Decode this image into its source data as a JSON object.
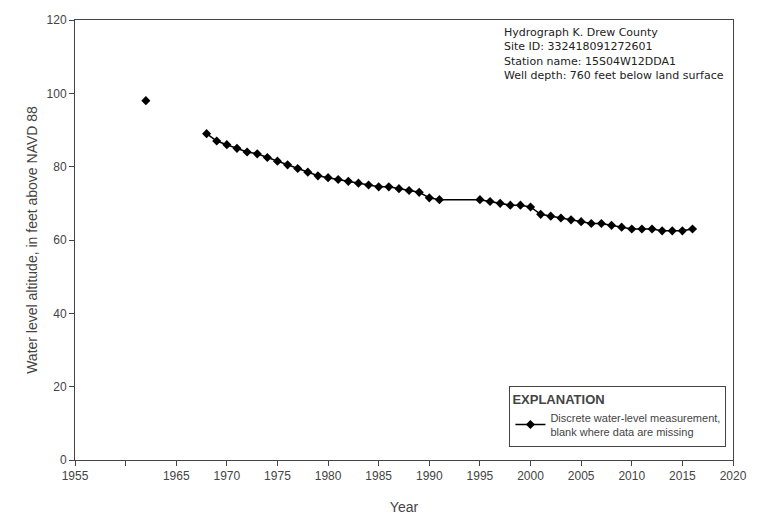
{
  "chart_data": {
    "type": "line",
    "xlabel": "Year",
    "ylabel": "Water level altitude, in feet above NAVD 88",
    "xlim": [
      1955,
      2020
    ],
    "ylim": [
      0,
      120
    ],
    "xticks": [
      1955,
      {
        "value": 1960,
        "label": null
      },
      1965,
      1970,
      1975,
      1980,
      1985,
      1990,
      1995,
      2000,
      2005,
      2010,
      2015,
      2020
    ],
    "yticks": [
      0,
      20,
      40,
      60,
      80,
      100,
      120
    ],
    "grid": false,
    "legend": "lower right",
    "legend_title": "EXPLANATION",
    "annotations": [
      "Hydrograph K. Drew County\nSite ID: 332418091272601\nStation name: 15S04W12DDA1\nWell depth: 760 feet below land surface"
    ],
    "series": [
      {
        "name": "Discrete water-level measurement,\nblank where data are missing",
        "color": "#000000",
        "marker": "diamond",
        "line_style": "none",
        "x": [
          1962
        ],
        "values": [
          98.0
        ]
      },
      {
        "name": "Discrete water-level measurement,\nblank where data are missing",
        "color": "#000000",
        "marker": "diamond",
        "line_style": "solid",
        "x": [
          1968,
          1969,
          1970,
          1971,
          1972,
          1973,
          1974,
          1975,
          1976,
          1977,
          1978,
          1979,
          1980,
          1981,
          1982,
          1983,
          1984,
          1985,
          1986,
          1987,
          1988,
          1989,
          1990,
          1991,
          1995,
          1996,
          1997,
          1998,
          1999,
          2000,
          2001,
          2002,
          2003,
          2004,
          2005,
          2006,
          2007,
          2008,
          2009,
          2010,
          2011,
          2012,
          2013,
          2014,
          2015,
          2016
        ],
        "values": [
          89.0,
          87.0,
          86.0,
          85.0,
          84.0,
          83.5,
          82.5,
          81.5,
          80.5,
          79.5,
          78.5,
          77.5,
          77.0,
          76.5,
          76.0,
          75.5,
          75.0,
          74.5,
          74.5,
          74.0,
          73.5,
          73.0,
          71.5,
          71.0,
          71.0,
          70.5,
          70.0,
          69.5,
          69.5,
          69.0,
          67.0,
          66.5,
          66.0,
          65.5,
          65.0,
          64.5,
          64.5,
          64.0,
          63.5,
          63.0,
          63.0,
          63.0,
          62.5,
          62.5,
          62.5,
          63.0
        ]
      }
    ]
  }
}
